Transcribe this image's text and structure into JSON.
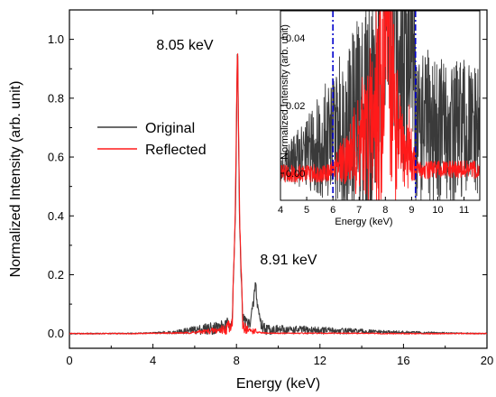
{
  "chart_data": [
    {
      "type": "line",
      "xlabel": "Energy (keV)",
      "ylabel": "Normalized Intensity (arb. unit)",
      "xlim": [
        0,
        20
      ],
      "ylim": [
        -0.05,
        1.1
      ],
      "xticks": [
        "0",
        "4",
        "8",
        "12",
        "16",
        "20"
      ],
      "yticks": [
        "0.0",
        "0.2",
        "0.4",
        "0.6",
        "0.8",
        "1.0"
      ],
      "legend_position": "middle-left",
      "annotations": [
        "8.05 keV",
        "8.91 keV"
      ],
      "series": [
        {
          "name": "Original",
          "color": "#3a3a3a",
          "x": [
            0,
            1,
            2,
            3,
            4,
            5,
            5.5,
            6,
            6.5,
            7,
            7.5,
            7.8,
            7.95,
            8.05,
            8.15,
            8.3,
            8.6,
            8.8,
            8.91,
            9.0,
            9.2,
            9.5,
            10,
            11,
            12,
            13,
            14,
            15,
            16,
            17,
            18,
            19,
            20
          ],
          "y": [
            0.0,
            0.0,
            0.0,
            0.001,
            0.002,
            0.005,
            0.008,
            0.012,
            0.016,
            0.02,
            0.025,
            0.05,
            0.4,
            1.0,
            0.35,
            0.05,
            0.03,
            0.09,
            0.175,
            0.1,
            0.025,
            0.015,
            0.013,
            0.012,
            0.011,
            0.009,
            0.007,
            0.005,
            0.004,
            0.003,
            0.002,
            0.001,
            0.0
          ]
        },
        {
          "name": "Reflected",
          "color": "#ff1a1a",
          "x": [
            0,
            1,
            2,
            3,
            4,
            5,
            5.5,
            6,
            6.5,
            7,
            7.5,
            7.8,
            7.95,
            8.05,
            8.15,
            8.3,
            8.6,
            8.8,
            8.91,
            9.0,
            9.2,
            9.5,
            10,
            11,
            12,
            13,
            14,
            15,
            16,
            17,
            18,
            19,
            20
          ],
          "y": [
            0.0,
            0.0,
            0.0,
            0.0,
            0.001,
            0.002,
            0.002,
            0.004,
            0.007,
            0.01,
            0.016,
            0.04,
            0.45,
            1.0,
            0.4,
            0.03,
            0.009,
            0.009,
            0.008,
            0.004,
            0.002,
            0.0015,
            0.001,
            0.001,
            0.001,
            0.001,
            0.001,
            0.0,
            0.0,
            0.0,
            0.0,
            0.0,
            0.0
          ]
        }
      ]
    },
    {
      "type": "line",
      "inset": true,
      "xlabel": "Energy (keV)",
      "ylabel": "Normalized Intensity (arb. unit)",
      "xlim": [
        4,
        11.6
      ],
      "ylim": [
        -0.008,
        0.048
      ],
      "xticks": [
        "4",
        "5",
        "6",
        "7",
        "8",
        "9",
        "10",
        "11"
      ],
      "yticks": [
        "0.00",
        "0.02",
        "0.04"
      ],
      "vertical_lines": [
        {
          "x": 6.0,
          "color": "#0000cc",
          "style": "dash-dot"
        },
        {
          "x": 9.15,
          "color": "#0000cc",
          "style": "dash-dot"
        }
      ],
      "series": [
        {
          "name": "Original",
          "color": "#3a3a3a",
          "x": [
            4,
            4.5,
            5,
            5.5,
            6,
            6.5,
            7,
            7.5,
            7.7,
            7.9,
            8.0,
            8.3,
            8.5,
            8.7,
            8.91,
            9.1,
            9.2,
            9.5,
            10,
            10.5,
            11,
            11.6
          ],
          "y": [
            0.002,
            0.004,
            0.006,
            0.009,
            0.011,
            0.014,
            0.017,
            0.021,
            0.026,
            0.035,
            0.05,
            0.05,
            0.03,
            0.035,
            0.05,
            0.03,
            0.014,
            0.013,
            0.013,
            0.012,
            0.012,
            0.011
          ]
        },
        {
          "name": "Reflected",
          "color": "#ff1a1a",
          "x": [
            4,
            5,
            5.8,
            6.0,
            6.2,
            6.4,
            6.6,
            7.0,
            7.3,
            7.6,
            7.8,
            7.9,
            8.0,
            8.1,
            8.2,
            8.35,
            8.5,
            8.7,
            8.85,
            8.91,
            9.0,
            9.2,
            9.5,
            10,
            11,
            11.6
          ],
          "y": [
            0.0,
            0.0,
            0.0,
            0.001,
            0.003,
            0.004,
            0.005,
            0.009,
            0.012,
            0.017,
            0.025,
            0.032,
            0.05,
            0.05,
            0.03,
            0.016,
            0.01,
            0.005,
            0.006,
            0.008,
            0.005,
            0.001,
            0.001,
            0.001,
            0.001,
            0.001
          ]
        }
      ]
    }
  ]
}
